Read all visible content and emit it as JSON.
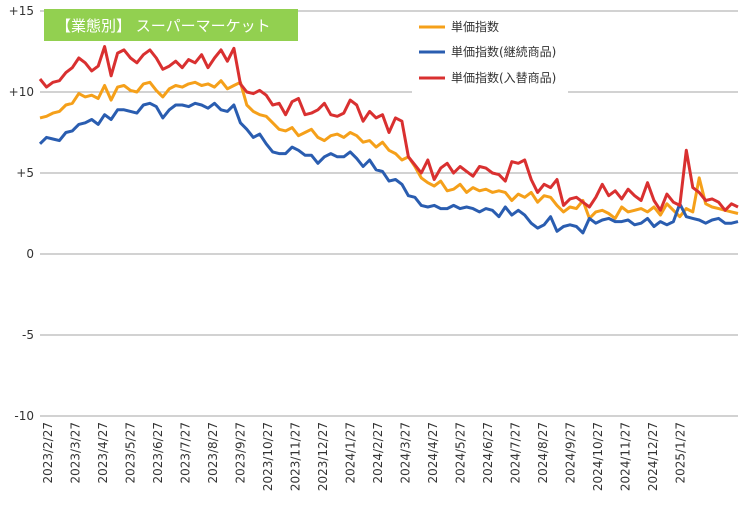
{
  "chart_data": {
    "type": "line",
    "title": "【業態別】 スーパーマーケット",
    "title_bg_color": "#92d050",
    "title_text_color": "#ffffff",
    "ylim": [
      -10,
      15
    ],
    "y_ticks": [
      {
        "value": 15,
        "label": "+15"
      },
      {
        "value": 10,
        "label": "+10"
      },
      {
        "value": 5,
        "label": "+5"
      },
      {
        "value": 0,
        "label": "0"
      },
      {
        "value": -5,
        "label": "-5"
      },
      {
        "value": -10,
        "label": "-10"
      }
    ],
    "grid": "horizontal",
    "legend_position": "top-right",
    "x_labels": [
      "2023/2/27",
      "2023/3/27",
      "2023/4/27",
      "2023/5/27",
      "2023/6/27",
      "2023/7/27",
      "2023/8/27",
      "2023/9/27",
      "2023/10/27",
      "2023/11/27",
      "2023/12/27",
      "2024/1/27",
      "2024/2/27",
      "2024/3/27",
      "2024/4/27",
      "2024/5/27",
      "2024/6/27",
      "2024/7/27",
      "2024/8/27",
      "2024/9/27",
      "2024/10/27",
      "2024/11/27",
      "2024/12/27",
      "2025/1/27"
    ],
    "series": [
      {
        "name": "単価指数",
        "color": "#f5a01a",
        "values": [
          8.4,
          8.5,
          8.7,
          8.8,
          9.2,
          9.3,
          9.9,
          9.7,
          9.8,
          9.6,
          10.4,
          9.5,
          10.3,
          10.4,
          10.1,
          10.0,
          10.5,
          10.6,
          10.1,
          9.7,
          10.2,
          10.4,
          10.3,
          10.5,
          10.6,
          10.4,
          10.5,
          10.3,
          10.7,
          10.2,
          10.4,
          10.6,
          9.2,
          8.8,
          8.6,
          8.5,
          8.1,
          7.7,
          7.6,
          7.8,
          7.3,
          7.5,
          7.7,
          7.2,
          7.0,
          7.3,
          7.4,
          7.2,
          7.5,
          7.3,
          6.9,
          7.0,
          6.6,
          6.9,
          6.4,
          6.2,
          5.8,
          6.0,
          5.4,
          4.7,
          4.4,
          4.2,
          4.5,
          3.9,
          4.0,
          4.3,
          3.8,
          4.1,
          3.9,
          4.0,
          3.8,
          3.9,
          3.8,
          3.3,
          3.7,
          3.5,
          3.8,
          3.2,
          3.6,
          3.5,
          3.0,
          2.6,
          2.9,
          2.8,
          3.3,
          2.2,
          2.6,
          2.7,
          2.5,
          2.2,
          2.9,
          2.6,
          2.7,
          2.8,
          2.6,
          2.9,
          2.4,
          3.1,
          2.7,
          2.3,
          2.8,
          2.6,
          4.7,
          3.1,
          2.9,
          2.8,
          2.7,
          2.6,
          2.5
        ]
      },
      {
        "name": "単価指数(継続商品)",
        "color": "#2a5db0",
        "values": [
          6.8,
          7.2,
          7.1,
          7.0,
          7.5,
          7.6,
          8.0,
          8.1,
          8.3,
          8.0,
          8.6,
          8.3,
          8.9,
          8.9,
          8.8,
          8.7,
          9.2,
          9.3,
          9.1,
          8.4,
          8.9,
          9.2,
          9.2,
          9.1,
          9.3,
          9.2,
          9.0,
          9.3,
          8.9,
          8.8,
          9.2,
          8.1,
          7.7,
          7.2,
          7.4,
          6.8,
          6.3,
          6.2,
          6.2,
          6.6,
          6.4,
          6.1,
          6.1,
          5.6,
          6.0,
          6.2,
          6.0,
          6.0,
          6.3,
          5.9,
          5.4,
          5.8,
          5.2,
          5.1,
          4.5,
          4.6,
          4.3,
          3.6,
          3.5,
          3.0,
          2.9,
          3.0,
          2.8,
          2.8,
          3.0,
          2.8,
          2.9,
          2.8,
          2.6,
          2.8,
          2.7,
          2.3,
          2.9,
          2.4,
          2.7,
          2.4,
          1.9,
          1.6,
          1.8,
          2.3,
          1.4,
          1.7,
          1.8,
          1.7,
          1.3,
          2.2,
          1.9,
          2.1,
          2.2,
          2.0,
          2.0,
          2.1,
          1.8,
          1.9,
          2.2,
          1.7,
          2.0,
          1.8,
          2.0,
          3.1,
          2.3,
          2.2,
          2.1,
          1.9,
          2.1,
          2.2,
          1.9,
          1.9,
          2.0
        ]
      },
      {
        "name": "単価指数(入替商品)",
        "color": "#d93030",
        "values": [
          10.8,
          10.3,
          10.6,
          10.7,
          11.2,
          11.5,
          12.1,
          11.8,
          11.3,
          11.6,
          12.8,
          11.0,
          12.4,
          12.6,
          12.1,
          11.8,
          12.3,
          12.6,
          12.1,
          11.4,
          11.6,
          11.9,
          11.5,
          12.0,
          11.8,
          12.3,
          11.5,
          12.1,
          12.6,
          11.9,
          12.7,
          10.5,
          10.0,
          9.9,
          10.1,
          9.8,
          9.2,
          9.3,
          8.6,
          9.4,
          9.6,
          8.6,
          8.7,
          8.9,
          9.3,
          8.6,
          8.5,
          8.7,
          9.5,
          9.2,
          8.2,
          8.8,
          8.4,
          8.6,
          7.5,
          8.4,
          8.2,
          6.0,
          5.5,
          5.0,
          5.8,
          4.6,
          5.3,
          5.6,
          5.0,
          5.4,
          5.1,
          4.8,
          5.4,
          5.3,
          5.0,
          4.9,
          4.5,
          5.7,
          5.6,
          5.8,
          4.6,
          3.8,
          4.3,
          4.1,
          4.6,
          3.0,
          3.4,
          3.5,
          3.2,
          2.9,
          3.5,
          4.3,
          3.6,
          3.9,
          3.4,
          4.0,
          3.6,
          3.3,
          4.4,
          3.3,
          2.7,
          3.7,
          3.2,
          3.0,
          6.4,
          4.1,
          3.8,
          3.3,
          3.4,
          3.2,
          2.7,
          3.1,
          2.9
        ]
      }
    ]
  }
}
